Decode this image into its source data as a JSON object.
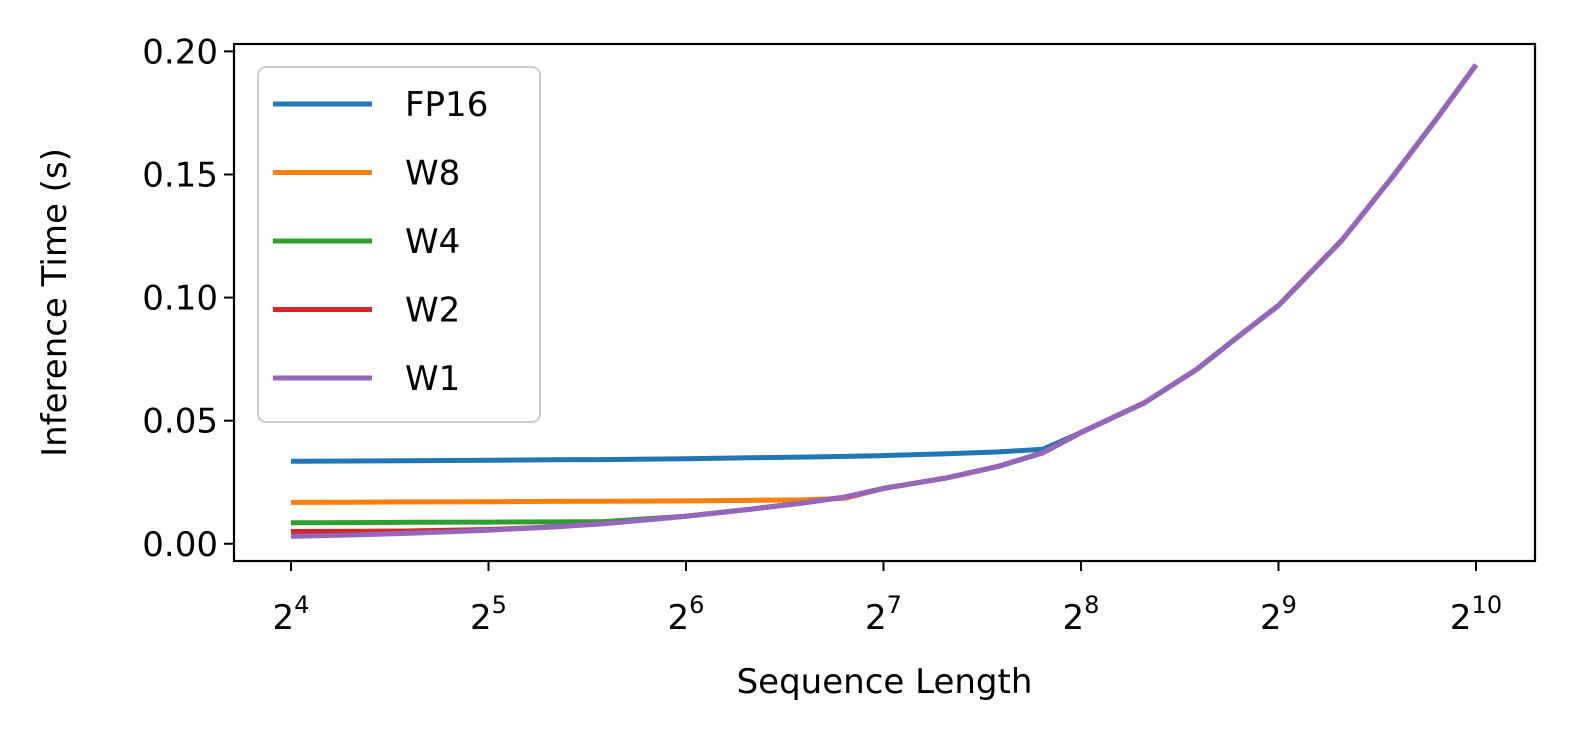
{
  "chart_data": {
    "type": "line",
    "title": "",
    "xlabel": "Sequence Length",
    "ylabel": "Inference Time (s)",
    "x_scale": "log2",
    "xlim": [
      16,
      1024
    ],
    "ylim": [
      -0.007,
      0.203
    ],
    "x_ticks": [
      {
        "value": 16,
        "base": "2",
        "exp": "4"
      },
      {
        "value": 32,
        "base": "2",
        "exp": "5"
      },
      {
        "value": 64,
        "base": "2",
        "exp": "6"
      },
      {
        "value": 128,
        "base": "2",
        "exp": "7"
      },
      {
        "value": 256,
        "base": "2",
        "exp": "8"
      },
      {
        "value": 512,
        "base": "2",
        "exp": "9"
      },
      {
        "value": 1024,
        "base": "2",
        "exp": "10"
      }
    ],
    "y_ticks": [
      {
        "value": 0.0,
        "label": "0.00"
      },
      {
        "value": 0.05,
        "label": "0.05"
      },
      {
        "value": 0.1,
        "label": "0.10"
      },
      {
        "value": 0.15,
        "label": "0.15"
      },
      {
        "value": 0.2,
        "label": "0.20"
      }
    ],
    "grid": false,
    "legend_position": "top-left",
    "x": [
      16,
      20,
      24,
      32,
      40,
      48,
      64,
      80,
      96,
      112,
      128,
      160,
      192,
      224,
      256,
      320,
      384,
      448,
      512,
      640,
      768,
      896,
      1024
    ],
    "series": [
      {
        "name": "FP16",
        "color": "#1f77b4",
        "values": [
          0.0335,
          0.0336,
          0.0337,
          0.0339,
          0.0341,
          0.0342,
          0.0345,
          0.0349,
          0.0352,
          0.0355,
          0.0358,
          0.0366,
          0.0373,
          0.0384,
          0.0452,
          0.0573,
          0.0708,
          0.0849,
          0.0968,
          0.1234,
          0.1498,
          0.1734,
          0.1945
        ]
      },
      {
        "name": "W8",
        "color": "#ff7f0e",
        "values": [
          0.0168,
          0.0169,
          0.017,
          0.0171,
          0.0172,
          0.0173,
          0.0174,
          0.0176,
          0.0178,
          0.0185,
          0.0225,
          0.0268,
          0.0315,
          0.037,
          0.0452,
          0.0573,
          0.0708,
          0.0849,
          0.0968,
          0.1234,
          0.1498,
          0.1734,
          0.1945
        ]
      },
      {
        "name": "W4",
        "color": "#2ca02c",
        "values": [
          0.0085,
          0.0086,
          0.0087,
          0.0088,
          0.0089,
          0.009,
          0.0112,
          0.014,
          0.0165,
          0.019,
          0.0225,
          0.0268,
          0.0315,
          0.037,
          0.0452,
          0.0573,
          0.0708,
          0.0849,
          0.0968,
          0.1234,
          0.1498,
          0.1734,
          0.1945
        ]
      },
      {
        "name": "W2",
        "color": "#d62728",
        "values": [
          0.005,
          0.0051,
          0.0052,
          0.0058,
          0.0068,
          0.0082,
          0.0112,
          0.014,
          0.0165,
          0.019,
          0.0225,
          0.0268,
          0.0315,
          0.037,
          0.0452,
          0.0573,
          0.0708,
          0.0849,
          0.0968,
          0.1234,
          0.1498,
          0.1734,
          0.1945
        ]
      },
      {
        "name": "W1",
        "color": "#9467bd",
        "values": [
          0.003,
          0.0036,
          0.0042,
          0.0055,
          0.0068,
          0.0082,
          0.0112,
          0.014,
          0.0165,
          0.019,
          0.0225,
          0.0268,
          0.0315,
          0.037,
          0.0452,
          0.0573,
          0.0708,
          0.0849,
          0.0968,
          0.1234,
          0.1498,
          0.1734,
          0.1945
        ]
      }
    ]
  }
}
